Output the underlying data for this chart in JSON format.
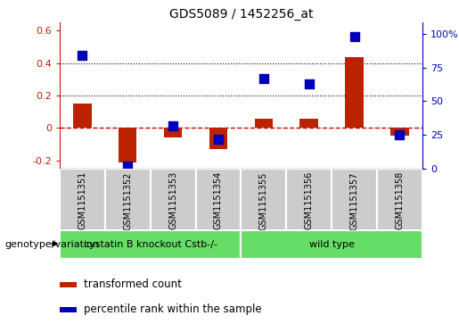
{
  "title": "GDS5089 / 1452256_at",
  "samples": [
    "GSM1151351",
    "GSM1151352",
    "GSM1151353",
    "GSM1151354",
    "GSM1151355",
    "GSM1151356",
    "GSM1151357",
    "GSM1151358"
  ],
  "transformed_count": [
    0.15,
    -0.21,
    -0.06,
    -0.13,
    0.055,
    0.055,
    0.44,
    -0.05
  ],
  "percentile_rank": [
    84,
    2,
    32,
    22,
    67,
    63,
    98,
    25
  ],
  "ylim_left": [
    -0.25,
    0.65
  ],
  "ylim_right": [
    0,
    108.33
  ],
  "yticks_left": [
    -0.2,
    0.0,
    0.2,
    0.4,
    0.6
  ],
  "ytick_labels_left": [
    "-0.2",
    "0",
    "0.2",
    "0.4",
    "0.6"
  ],
  "yticks_right": [
    0,
    25,
    50,
    75,
    100
  ],
  "ytick_labels_right": [
    "0",
    "25",
    "50",
    "75",
    "100%"
  ],
  "hlines": [
    0.2,
    0.4
  ],
  "group1_label": "cystatin B knockout Cstb-/-",
  "group2_label": "wild type",
  "group1_count": 4,
  "group2_count": 4,
  "group_label_prefix": "genotype/variation",
  "legend_tc": "transformed count",
  "legend_pr": "percentile rank within the sample",
  "bar_color": "#bb2200",
  "dot_color": "#0000bb",
  "group_box_color": "#aaaaaa",
  "group_fill_color": "#66dd66",
  "zero_line_color": "#cc0000",
  "bar_width": 0.4,
  "dot_size": 45,
  "bg_color": "#ffffff"
}
